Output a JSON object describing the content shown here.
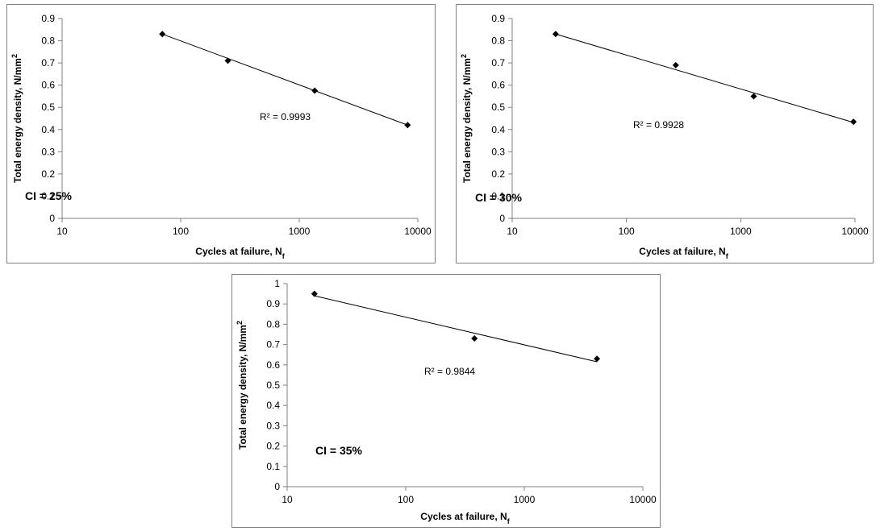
{
  "chart_data": [
    {
      "type": "scatter",
      "title": "",
      "xlabel": "Cycles at failure, N",
      "xlabel_sub": "f",
      "ylabel": "Total energy density, N/mm",
      "ylabel_sup": "2",
      "xscale": "log",
      "xlim": [
        10,
        10000
      ],
      "ylim": [
        0,
        0.9
      ],
      "xticks": [
        "10",
        "100",
        "1000",
        "10000"
      ],
      "yticks": [
        "0",
        "0.1",
        "0.2",
        "0.3",
        "0.4",
        "0.5",
        "0.6",
        "0.7",
        "0.8",
        "0.9"
      ],
      "annotation": "CI = 25%",
      "r2_label": "R² = 0.9993",
      "grid": false,
      "series": [
        {
          "x": [
            70,
            250,
            1350,
            8200
          ],
          "y": [
            0.83,
            0.71,
            0.575,
            0.42
          ]
        }
      ],
      "trendline": {
        "x": [
          70,
          8200
        ],
        "y": [
          0.83,
          0.42
        ]
      }
    },
    {
      "type": "scatter",
      "title": "",
      "xlabel": "Cycles at failure, N",
      "xlabel_sub": "f",
      "ylabel": "Total energy density, N/mm",
      "ylabel_sup": "2",
      "xscale": "log",
      "xlim": [
        10,
        10000
      ],
      "ylim": [
        0,
        0.9
      ],
      "xticks": [
        "10",
        "100",
        "1000",
        "10000"
      ],
      "yticks": [
        "0",
        "0.1",
        "0.2",
        "0.3",
        "0.4",
        "0.5",
        "0.6",
        "0.7",
        "0.8",
        "0.9"
      ],
      "annotation": "CI = 30%",
      "r2_label": "R² = 0.9928",
      "grid": false,
      "series": [
        {
          "x": [
            24,
            270,
            1300,
            9700
          ],
          "y": [
            0.83,
            0.69,
            0.55,
            0.435
          ]
        }
      ],
      "trendline": {
        "x": [
          24,
          9700
        ],
        "y": [
          0.83,
          0.432
        ]
      }
    },
    {
      "type": "scatter",
      "title": "",
      "xlabel": "Cycles at failure, N",
      "xlabel_sub": "f",
      "ylabel": "Total energy density, N/mm",
      "ylabel_sup": "2",
      "xscale": "log",
      "xlim": [
        10,
        10000
      ],
      "ylim": [
        0,
        1
      ],
      "xticks": [
        "10",
        "100",
        "1000",
        "10000"
      ],
      "yticks": [
        "0",
        "0.1",
        "0.2",
        "0.3",
        "0.4",
        "0.5",
        "0.6",
        "0.7",
        "0.8",
        "0.9",
        "1"
      ],
      "annotation": "CI = 35%",
      "r2_label": "R² = 0.9844",
      "grid": false,
      "series": [
        {
          "x": [
            17,
            380,
            4100
          ],
          "y": [
            0.95,
            0.73,
            0.63
          ]
        }
      ],
      "trendline": {
        "x": [
          17,
          4100
        ],
        "y": [
          0.94,
          0.615
        ]
      }
    }
  ]
}
